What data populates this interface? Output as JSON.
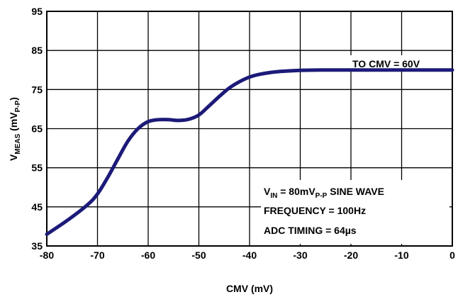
{
  "chart_data": {
    "type": "line",
    "title": "",
    "xlabel": "CMV (mV)",
    "ylabel_parts": {
      "main": "V",
      "sub": "MEAS",
      "unit_pre": " (mV",
      "unit_sub": "P-P",
      "unit_post": ")"
    },
    "xlim": [
      -80,
      0
    ],
    "ylim": [
      35,
      95
    ],
    "grid": true,
    "x_ticks": [
      "-80",
      "-70",
      "-60",
      "-50",
      "-40",
      "-30",
      "-20",
      "-10",
      "0"
    ],
    "y_ticks": [
      "35",
      "45",
      "55",
      "65",
      "75",
      "85",
      "95"
    ],
    "series": [
      {
        "color": "#1c1a78",
        "x": [
          -80,
          -76,
          -72,
          -70,
          -68,
          -66,
          -64,
          -62,
          -60,
          -58,
          -56,
          -54,
          -52,
          -50,
          -48,
          -46,
          -44,
          -42,
          -40,
          -38,
          -35,
          -30,
          -25,
          -20,
          -10,
          0
        ],
        "y": [
          38,
          41.5,
          45.5,
          48.3,
          52.5,
          57.2,
          61.8,
          65.0,
          66.8,
          67.3,
          67.3,
          67.1,
          67.4,
          68.5,
          70.8,
          73.2,
          75.4,
          77.0,
          78.2,
          78.9,
          79.5,
          79.9,
          80.0,
          80.0,
          80.0,
          80.0
        ]
      }
    ],
    "annotations": {
      "top_right": "TO CMV = 60V",
      "vin": {
        "main": "V",
        "sub": "IN",
        "mid": " = 80mV",
        "sub2": "P-P",
        "post": " SINE WAVE"
      },
      "frequency": "FREQUENCY = 100Hz",
      "adc": "ADC TIMING = 64µs"
    }
  }
}
